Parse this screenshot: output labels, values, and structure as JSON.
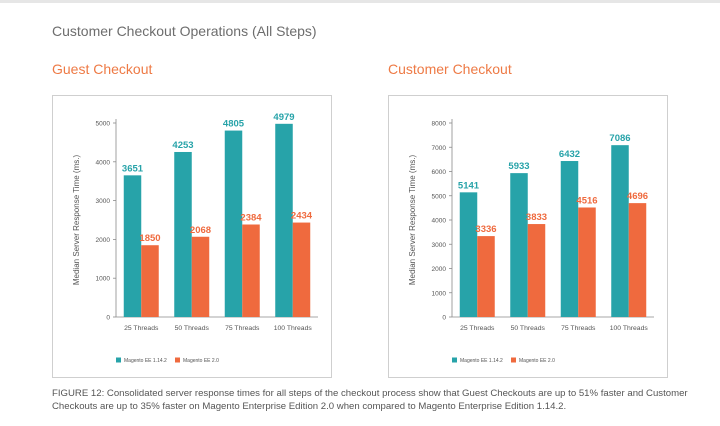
{
  "page": {
    "title": "Customer Checkout Operations (All Steps)",
    "caption": "FIGURE 12: Consolidated server response times for all steps of the checkout process show that Guest Checkouts are up to 51% faster and Customer Checkouts are up to 35% faster on Magento Enterprise Edition 2.0 when compared to Magento Enterprise Edition 1.14.2."
  },
  "colors": {
    "series_a": "#27a3a9",
    "series_b": "#ef6a3e",
    "accent_title": "#ee7a45"
  },
  "chart_data": [
    {
      "type": "bar",
      "title": "Guest Checkout",
      "ylabel": "Median Server Response Time (ms.)",
      "xlabel": "",
      "categories": [
        "25 Threads",
        "50 Threads",
        "75 Threads",
        "100 Threads"
      ],
      "ylim": [
        0,
        5000
      ],
      "yticks": [
        0,
        1000,
        2000,
        3000,
        4000,
        5000
      ],
      "grid": false,
      "legend": "bottom-left",
      "series": [
        {
          "name": "Magento EE 1.14.2",
          "color": "#27a3a9",
          "values": [
            3651,
            4253,
            4805,
            4979
          ]
        },
        {
          "name": "Magento EE 2.0",
          "color": "#ef6a3e",
          "values": [
            1850,
            2068,
            2384,
            2434
          ]
        }
      ]
    },
    {
      "type": "bar",
      "title": "Customer Checkout",
      "ylabel": "Median Server Response Time (ms.)",
      "xlabel": "",
      "categories": [
        "25 Threads",
        "50 Threads",
        "75 Threads",
        "100 Threads"
      ],
      "ylim": [
        0,
        8000
      ],
      "yticks": [
        0,
        1000,
        2000,
        3000,
        4000,
        5000,
        6000,
        7000,
        8000
      ],
      "grid": false,
      "legend": "bottom-left",
      "series": [
        {
          "name": "Magento EE 1.14.2",
          "color": "#27a3a9",
          "values": [
            5141,
            5933,
            6432,
            7086
          ]
        },
        {
          "name": "Magento EE 2.0",
          "color": "#ef6a3e",
          "values": [
            3336,
            3833,
            4516,
            4696
          ]
        }
      ]
    }
  ]
}
